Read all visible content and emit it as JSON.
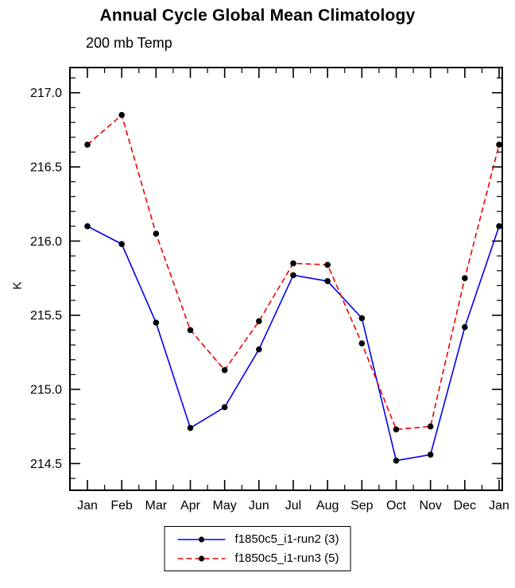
{
  "title": "Annual Cycle Global Mean Climatology",
  "subtitle": "200 mb Temp",
  "chart_data": {
    "type": "line",
    "categories": [
      "Jan",
      "Feb",
      "Mar",
      "Apr",
      "May",
      "Jun",
      "Jul",
      "Aug",
      "Sep",
      "Oct",
      "Nov",
      "Dec",
      "Jan"
    ],
    "series": [
      {
        "name": "f1850c5_i1-run2 (3)",
        "color": "#0000ee",
        "dash": "solid",
        "values": [
          216.1,
          215.98,
          215.45,
          214.74,
          214.88,
          215.27,
          215.77,
          215.73,
          215.48,
          214.52,
          214.56,
          215.42,
          216.1
        ]
      },
      {
        "name": "f1850c5_i1-run3 (5)",
        "color": "#ee0000",
        "dash": "dashed",
        "values": [
          216.65,
          216.85,
          216.05,
          215.4,
          215.13,
          215.46,
          215.85,
          215.84,
          215.31,
          214.73,
          214.75,
          215.75,
          216.65
        ]
      }
    ],
    "xlabel": "",
    "ylabel": "K",
    "yticks": [
      214.5,
      215.0,
      215.5,
      216.0,
      216.5,
      217.0
    ],
    "ylim": [
      214.32,
      217.17
    ],
    "grid": false,
    "marker": {
      "shape": "circle",
      "color": "#000000"
    },
    "frame_color": "#000000",
    "legend_position": "bottom"
  }
}
